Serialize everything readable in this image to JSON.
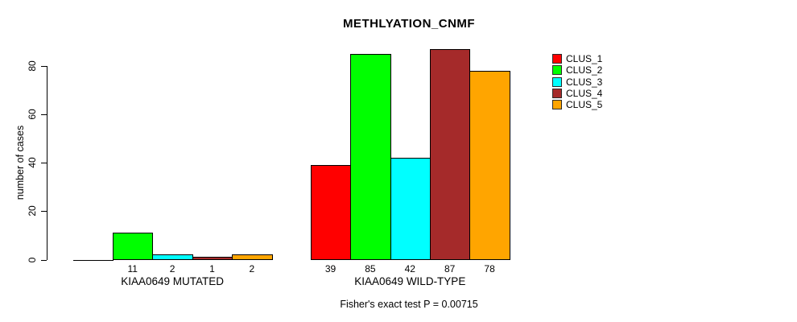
{
  "title": "METHLYATION_CNMF",
  "footer": "Fisher's exact test P = 0.00715",
  "chart_data": {
    "type": "bar",
    "title": "METHLYATION_CNMF",
    "xlabel": "",
    "ylabel": "number of cases",
    "ylim": [
      0,
      88
    ],
    "yticks": [
      0,
      20,
      40,
      60,
      80
    ],
    "grid": false,
    "legend_position": "right-outside",
    "categories": [
      "KIAA0649 MUTATED",
      "KIAA0649 WILD-TYPE"
    ],
    "series": [
      {
        "name": "CLUS_1",
        "color": "#ff0000",
        "values": [
          0,
          39
        ]
      },
      {
        "name": "CLUS_2",
        "color": "#00ff00",
        "values": [
          11,
          85
        ]
      },
      {
        "name": "CLUS_3",
        "color": "#00ffff",
        "values": [
          2,
          42
        ]
      },
      {
        "name": "CLUS_4",
        "color": "#a52a2a",
        "values": [
          1,
          87
        ]
      },
      {
        "name": "CLUS_5",
        "color": "#ffa500",
        "values": [
          2,
          78
        ]
      }
    ],
    "bar_value_labels": [
      [
        "",
        "11",
        "2",
        "1",
        "2"
      ],
      [
        "39",
        "85",
        "42",
        "87",
        "78"
      ]
    ],
    "annotation": "Fisher's exact test P = 0.00715",
    "axis_color": "#000000",
    "background_color": "#ffffff"
  }
}
